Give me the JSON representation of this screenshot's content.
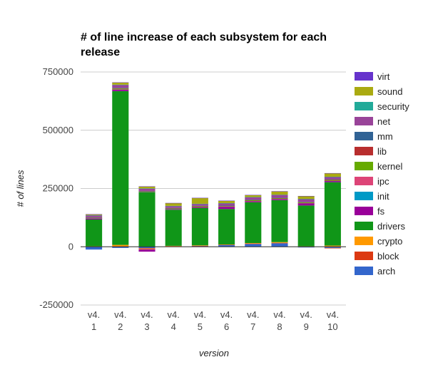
{
  "chart_data": {
    "type": "bar",
    "stacked": true,
    "title_lines": [
      "# of line increase of each subsystem for each",
      "release"
    ],
    "xlabel": "version",
    "ylabel": "# of lines",
    "ylim": [
      -250000,
      750000
    ],
    "yticks": [
      -250000,
      0,
      250000,
      500000,
      750000
    ],
    "ytick_labels": [
      "-250000",
      "0",
      "250000",
      "500000",
      "750000"
    ],
    "grid": true,
    "legend_position": "right",
    "categories": [
      [
        "v4.",
        "1"
      ],
      [
        "v4.",
        "2"
      ],
      [
        "v4.",
        "3"
      ],
      [
        "v4.",
        "4"
      ],
      [
        "v4.",
        "5"
      ],
      [
        "v4.",
        "6"
      ],
      [
        "v4.",
        "7"
      ],
      [
        "v4.",
        "8"
      ],
      [
        "v4.",
        "9"
      ],
      [
        "v4.",
        "10"
      ]
    ],
    "series": [
      {
        "name": "arch",
        "color": "#3366cc",
        "values": [
          -12000,
          -5000,
          -6000,
          2000,
          3000,
          8000,
          12000,
          15000,
          -3000,
          -5000
        ]
      },
      {
        "name": "block",
        "color": "#dc3912",
        "values": [
          1000,
          2000,
          -3000,
          1000,
          1000,
          1000,
          2000,
          2000,
          1000,
          -2000
        ]
      },
      {
        "name": "crypto",
        "color": "#ff9900",
        "values": [
          1000,
          6000,
          -2000,
          1000,
          2000,
          1000,
          2000,
          3000,
          1000,
          5000
        ]
      },
      {
        "name": "drivers",
        "color": "#109618",
        "values": [
          115000,
          660000,
          235000,
          155000,
          160000,
          152000,
          175000,
          180000,
          175000,
          272000
        ]
      },
      {
        "name": "fs",
        "color": "#990099",
        "values": [
          5000,
          7000,
          -10000,
          3000,
          4000,
          10000,
          5000,
          5000,
          10000,
          6000
        ]
      },
      {
        "name": "init",
        "color": "#0099c6",
        "values": [
          200,
          200,
          200,
          200,
          200,
          200,
          200,
          200,
          200,
          200
        ]
      },
      {
        "name": "ipc",
        "color": "#dd4477",
        "values": [
          300,
          300,
          300,
          300,
          300,
          300,
          300,
          300,
          300,
          300
        ]
      },
      {
        "name": "kernel",
        "color": "#66aa00",
        "values": [
          2000,
          3000,
          2000,
          2000,
          3000,
          2000,
          3000,
          3000,
          3000,
          3000
        ]
      },
      {
        "name": "lib",
        "color": "#b82e2e",
        "values": [
          1000,
          2000,
          1000,
          1000,
          1000,
          1000,
          1000,
          1000,
          1000,
          2000
        ]
      },
      {
        "name": "mm",
        "color": "#316395",
        "values": [
          1000,
          2000,
          1000,
          1000,
          1000,
          1000,
          2000,
          1000,
          1000,
          1000
        ]
      },
      {
        "name": "net",
        "color": "#994499",
        "values": [
          8000,
          12000,
          10000,
          8000,
          8000,
          10000,
          10000,
          12000,
          12000,
          10000
        ]
      },
      {
        "name": "security",
        "color": "#22aa99",
        "values": [
          1000,
          1000,
          1000,
          1000,
          1000,
          1000,
          1000,
          1000,
          1000,
          1000
        ]
      },
      {
        "name": "sound",
        "color": "#aaaa11",
        "values": [
          4000,
          9000,
          8000,
          12000,
          25000,
          10000,
          8000,
          14000,
          12000,
          15000
        ]
      },
      {
        "name": "virt",
        "color": "#6633cc",
        "values": [
          500,
          1000,
          1000,
          500,
          500,
          500,
          1000,
          1000,
          500,
          500
        ]
      }
    ]
  }
}
